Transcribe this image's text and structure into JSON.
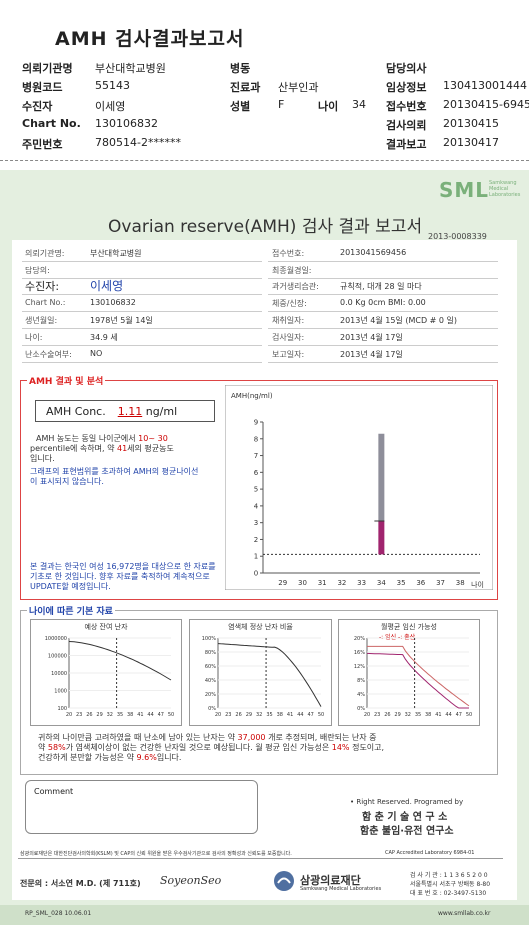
{
  "header": {
    "title": "AMH 검사결과보고서",
    "rows": [
      {
        "l1": "의뢰기관명",
        "v1": "부산대학교병원",
        "l2": "병동",
        "v2": "",
        "l3": "",
        "v3": "",
        "l4": "담당의사",
        "v4": ""
      },
      {
        "l1": "병원코드",
        "v1": "55143",
        "l2": "진료과",
        "v2": "산부인과",
        "l3": "",
        "v3": "",
        "l4": "임상정보",
        "v4": "130413001444"
      },
      {
        "l1": "수진자",
        "v1": "이세영",
        "l2": "성별",
        "v2": "F",
        "l3": "나이",
        "v3": "34",
        "l4": "접수번호",
        "v4": "20130415-6945"
      },
      {
        "l1": "Chart No.",
        "v1": "130106832",
        "l2": "",
        "v2": "",
        "l3": "",
        "v3": "",
        "l4": "검사의뢰",
        "v4": "20130415"
      },
      {
        "l1": "주민번호",
        "v1": "780514-2******",
        "l2": "",
        "v2": "",
        "l3": "",
        "v3": "",
        "l4": "결과보고",
        "v4": "20130417"
      }
    ]
  },
  "report": {
    "logo": "SML",
    "logo_sub": "Samkwang Medical Laboratories",
    "title": "Ovarian reserve(AMH) 검사 결과 보고서",
    "number": "2013-0008339",
    "left_fields": [
      {
        "label": "의뢰기관명:",
        "value": "부산대학교병원"
      },
      {
        "label": "담당의:",
        "value": ""
      },
      {
        "label": "수진자:",
        "value": "이세영"
      },
      {
        "label": "Chart No.:",
        "value": "130106832"
      },
      {
        "label": "생년월일:",
        "value": "1978년 5월 14일"
      },
      {
        "label": "나이:",
        "value": "34.9 세"
      },
      {
        "label": "난소수술여부:",
        "value": "NO"
      }
    ],
    "right_fields": [
      {
        "label": "접수번호:",
        "value": "2013041569456"
      },
      {
        "label": "최종월경일:",
        "value": ""
      },
      {
        "label": "과거생리습관:",
        "value": "규칙적, 대개  28 일 마다"
      },
      {
        "label": "체중/신장:",
        "value": "0.0 Kg       0cm   BMI:  0.00"
      },
      {
        "label": "채취일자:",
        "value": "2013년 4월 15일   (MCD # 0 일)"
      },
      {
        "label": "검사일자:",
        "value": "2013년 4월 17일"
      },
      {
        "label": "보고일자:",
        "value": "2013년 4월 17일"
      }
    ],
    "amh_section_title": "AMH 결과 및 분석",
    "amh_label": "AMH Conc.",
    "amh_value": "1.11",
    "amh_unit": "ng/ml",
    "desc1_a": "AMH 농도는 동일 나이군에서",
    "desc1_b": "10~ 30",
    "desc1_c": "percentile에 속하며, 약",
    "desc1_d": "41",
    "desc1_e": "세의 평균농도",
    "desc1_f": "입니다.",
    "desc2": "그래프의 표현범위를 초과하여 AMH의 평균나이선이 표시되지 않습니다.",
    "desc3": "본 결과는 한국인 여성 16,972명을 대상으로 한 자료를 기초로 한 것입니다. 향후 자료를 축적하여 계속적으로 UPDATE할 예정입니다.",
    "basic_title": "나이에 따른 기본 자료",
    "mini_titles": [
      "예상 잔여 난자",
      "염색체 정상 난자 비율",
      "월평균 임신 가능성"
    ],
    "mini_legend": "-: 임신  -: 출산",
    "summary1_a": "귀하의 나이만큼 고려하였을 때 난소에 남아 있는 난자는 약",
    "summary1_b": "37,000",
    "summary1_c": "개로 추정되며, 배란되는 난자 중",
    "summary2_a": "약",
    "summary2_b": "58%",
    "summary2_c": "가 염색체이상이 없는 건강한 난자일 것으로 예상됩니다. 월 평균 임신 가능성은",
    "summary2_d": "14%",
    "summary2_e": "정도이고,",
    "summary3_a": "건강하게 분만할 가능성은 약",
    "summary3_b": "9.6%",
    "summary3_c": "입니다.",
    "comment_label": "Comment",
    "rights": "• Right Reserved. Programed by",
    "lab1": "함 춘 기 술 연 구 소",
    "lab2": "함춘 불임·유전 연구소",
    "cert_text": "삼광의료재단은 대한진단검사의학회(KSLM) 및 CAP의 신뢰 위원을 받은 우수검사기관으로 검사의 정확성과 신뢰도를 보증합니다.",
    "cap": "CAP  Accredited  Laboratory  6984-01",
    "doctor": "전문의 : 서소연 M.D. (제 711호)",
    "signature": "SoyeonSeo",
    "foundation": "삼광의료재단",
    "foundation_en": "Samkwang Medical Laboratories",
    "contact1": "검 사 기 관 : 1 1 3 6 5 2 0 0",
    "contact2": "서울특별시 서초구 방배동 8-80",
    "contact3": "대 표 번 호 : 02-3497-5130",
    "form_no": "RP_SML_028  10.06.01",
    "website": "www.smllab.co.kr"
  },
  "chart_data": {
    "type": "bar",
    "title": "",
    "ylabel": "AMH(ng/ml)",
    "xlabel": "나이",
    "x_ticks": [
      29,
      30,
      31,
      32,
      33,
      34,
      35,
      36,
      37,
      38
    ],
    "y_ticks": [
      0,
      1,
      2,
      3,
      4,
      5,
      6,
      7,
      8,
      9
    ],
    "ylim": [
      0,
      9
    ],
    "xlim": [
      28,
      39
    ],
    "age": 34,
    "range_low": 1.11,
    "range_high": 3.1,
    "range_max": 8.3,
    "reference_line": 1.11,
    "colors": {
      "range": "#8e8e9a",
      "patient": "#a0246e"
    }
  },
  "mini_charts": [
    {
      "type": "line",
      "y_ticks": [
        "1000000",
        "100000",
        "10000",
        "1000",
        "100"
      ],
      "x_ticks": [
        20,
        23,
        26,
        29,
        32,
        35,
        38,
        41,
        44,
        47,
        50
      ]
    },
    {
      "type": "line",
      "y_ticks": [
        "100%",
        "80%",
        "60%",
        "40%",
        "20%",
        "0%"
      ],
      "x_ticks": [
        20,
        23,
        26,
        29,
        32,
        35,
        38,
        41,
        44,
        47,
        50
      ]
    },
    {
      "type": "line",
      "y_ticks": [
        "20%",
        "16%",
        "12%",
        "8%",
        "4%",
        "0%"
      ],
      "x_ticks": [
        20,
        23,
        26,
        29,
        32,
        35,
        38,
        41,
        44,
        47,
        50
      ]
    }
  ]
}
